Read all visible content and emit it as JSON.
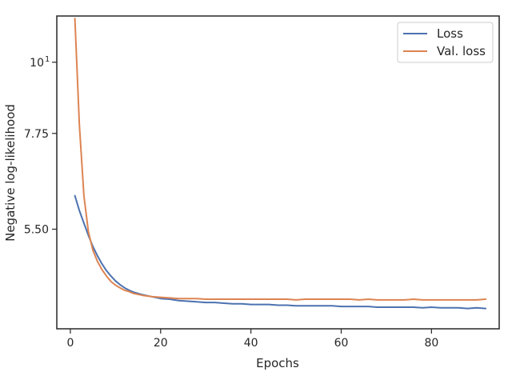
{
  "chart_data": {
    "type": "line",
    "xlabel": "Epochs",
    "ylabel": "Negative log-likelihood",
    "xlim": [
      -3,
      95
    ],
    "ylim": [
      3.85,
      11.8
    ],
    "yscale": "log",
    "x_ticks": [
      {
        "value": 0,
        "label": "0"
      },
      {
        "value": 20,
        "label": "20"
      },
      {
        "value": 40,
        "label": "40"
      },
      {
        "value": 60,
        "label": "60"
      },
      {
        "value": 80,
        "label": "80"
      }
    ],
    "y_ticks": [
      {
        "value": 5.5,
        "label": "5.50",
        "sup": ""
      },
      {
        "value": 7.75,
        "label": "7.75",
        "sup": ""
      },
      {
        "value": 10,
        "label": "10",
        "sup": "1"
      }
    ],
    "legend_position": "top-right",
    "grid": false,
    "series": [
      {
        "name": "Loss",
        "color": "#4c72b0",
        "x": [
          1,
          2,
          3,
          4,
          5,
          6,
          7,
          8,
          9,
          10,
          11,
          12,
          13,
          14,
          16,
          18,
          20,
          22,
          24,
          26,
          28,
          30,
          32,
          34,
          36,
          38,
          40,
          42,
          44,
          46,
          48,
          50,
          52,
          54,
          56,
          58,
          60,
          62,
          64,
          66,
          68,
          70,
          72,
          74,
          76,
          78,
          80,
          82,
          84,
          86,
          88,
          90,
          92
        ],
        "y": [
          6.2,
          5.88,
          5.62,
          5.38,
          5.17,
          5.0,
          4.86,
          4.74,
          4.65,
          4.57,
          4.51,
          4.46,
          4.42,
          4.39,
          4.35,
          4.32,
          4.29,
          4.28,
          4.26,
          4.25,
          4.24,
          4.23,
          4.23,
          4.22,
          4.21,
          4.21,
          4.2,
          4.2,
          4.2,
          4.19,
          4.19,
          4.18,
          4.18,
          4.18,
          4.18,
          4.18,
          4.17,
          4.17,
          4.17,
          4.17,
          4.16,
          4.16,
          4.16,
          4.16,
          4.16,
          4.15,
          4.16,
          4.15,
          4.15,
          4.15,
          4.14,
          4.15,
          4.14
        ]
      },
      {
        "name": "Val. loss",
        "color": "#dd8452",
        "x": [
          1,
          2,
          3,
          4,
          5,
          6,
          7,
          8,
          9,
          10,
          11,
          12,
          13,
          14,
          16,
          18,
          20,
          22,
          24,
          26,
          28,
          30,
          32,
          34,
          36,
          38,
          40,
          42,
          44,
          46,
          48,
          50,
          52,
          54,
          56,
          58,
          60,
          62,
          64,
          66,
          68,
          70,
          72,
          74,
          76,
          78,
          80,
          82,
          84,
          86,
          88,
          90,
          92
        ],
        "y": [
          11.7,
          8.0,
          6.2,
          5.45,
          5.1,
          4.9,
          4.76,
          4.65,
          4.56,
          4.5,
          4.46,
          4.42,
          4.4,
          4.37,
          4.34,
          4.32,
          4.31,
          4.3,
          4.29,
          4.29,
          4.29,
          4.28,
          4.28,
          4.28,
          4.28,
          4.28,
          4.28,
          4.28,
          4.28,
          4.28,
          4.28,
          4.27,
          4.28,
          4.28,
          4.28,
          4.28,
          4.28,
          4.28,
          4.27,
          4.28,
          4.27,
          4.27,
          4.27,
          4.27,
          4.28,
          4.27,
          4.27,
          4.27,
          4.27,
          4.27,
          4.27,
          4.27,
          4.28
        ]
      }
    ]
  }
}
